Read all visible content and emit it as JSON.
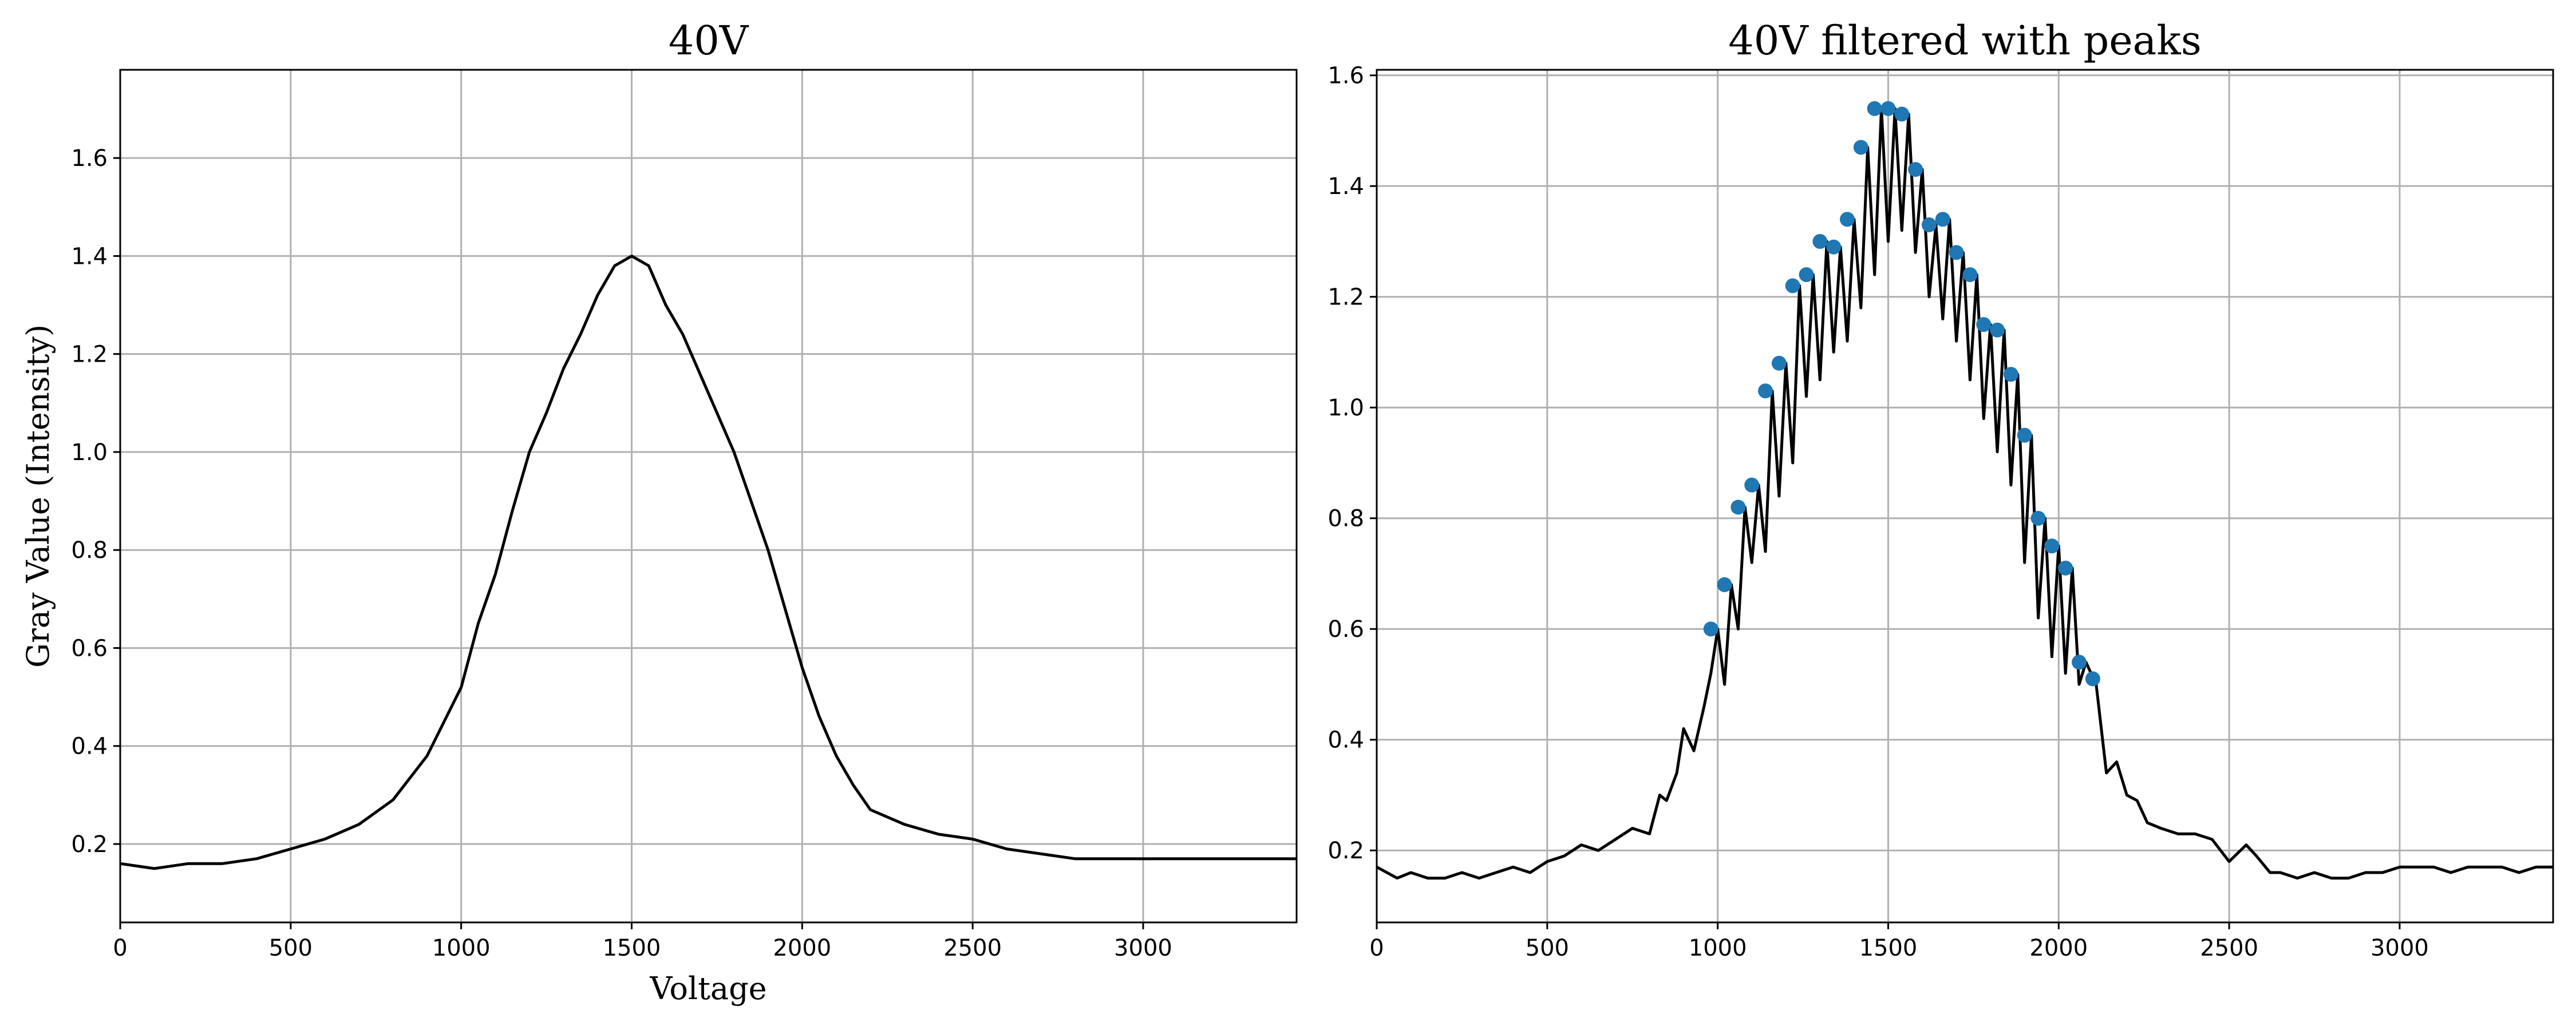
{
  "chart_data": [
    {
      "type": "line",
      "title": "40V",
      "xlabel": "Voltage",
      "ylabel": "Gray Value (Intensity)",
      "xlim": [
        0,
        3450
      ],
      "ylim": [
        0.04,
        1.78
      ],
      "xticks": [
        0,
        500,
        1000,
        1500,
        2000,
        2500,
        3000
      ],
      "yticks": [
        0.2,
        0.4,
        0.6,
        0.8,
        1.0,
        1.2,
        1.4,
        1.6
      ],
      "ytick_labels": [
        "0.2",
        "0.4",
        "0.6",
        "0.8",
        "1.0",
        "1.2",
        "1.4",
        "1.6"
      ],
      "grid": true,
      "series": [
        {
          "color": "#000000",
          "x": [
            0,
            100,
            200,
            300,
            400,
            500,
            600,
            700,
            800,
            900,
            950,
            1000,
            1050,
            1100,
            1150,
            1200,
            1250,
            1300,
            1350,
            1400,
            1450,
            1500,
            1550,
            1600,
            1650,
            1700,
            1750,
            1800,
            1850,
            1900,
            1950,
            2000,
            2050,
            2100,
            2150,
            2200,
            2300,
            2400,
            2500,
            2600,
            2700,
            2800,
            2900,
            3000,
            3100,
            3200,
            3300,
            3400,
            3450
          ],
          "y": [
            0.16,
            0.15,
            0.16,
            0.16,
            0.17,
            0.19,
            0.21,
            0.24,
            0.29,
            0.38,
            0.45,
            0.52,
            0.65,
            0.75,
            0.88,
            1.0,
            1.08,
            1.17,
            1.24,
            1.32,
            1.38,
            1.4,
            1.38,
            1.3,
            1.24,
            1.16,
            1.08,
            1.0,
            0.9,
            0.8,
            0.68,
            0.56,
            0.46,
            0.38,
            0.32,
            0.27,
            0.24,
            0.22,
            0.21,
            0.19,
            0.18,
            0.17,
            0.17,
            0.17,
            0.17,
            0.17,
            0.17,
            0.17,
            0.17
          ]
        }
      ]
    },
    {
      "type": "line",
      "title": "40V filtered with peaks",
      "xlabel": "",
      "ylabel": "",
      "xlim": [
        0,
        3450
      ],
      "ylim": [
        0.07,
        1.61
      ],
      "xticks": [
        0,
        500,
        1000,
        1500,
        2000,
        2500,
        3000
      ],
      "yticks": [
        0.2,
        0.4,
        0.6,
        0.8,
        1.0,
        1.2,
        1.4,
        1.6
      ],
      "ytick_labels": [
        "0.2",
        "0.4",
        "0.6",
        "0.8",
        "1.0",
        "1.2",
        "1.4",
        "1.6"
      ],
      "grid": true,
      "series": [
        {
          "color": "#000000",
          "x": [
            0,
            30,
            60,
            100,
            150,
            200,
            250,
            300,
            350,
            400,
            450,
            500,
            550,
            600,
            650,
            700,
            750,
            800,
            830,
            850,
            880,
            900,
            930,
            960,
            980,
            1000,
            1020,
            1040,
            1060,
            1080,
            1100,
            1120,
            1140,
            1160,
            1180,
            1200,
            1220,
            1240,
            1260,
            1280,
            1300,
            1320,
            1340,
            1360,
            1380,
            1400,
            1420,
            1440,
            1460,
            1480,
            1500,
            1520,
            1540,
            1560,
            1580,
            1600,
            1620,
            1640,
            1660,
            1680,
            1700,
            1720,
            1740,
            1760,
            1780,
            1800,
            1820,
            1840,
            1860,
            1880,
            1900,
            1920,
            1940,
            1960,
            1980,
            2000,
            2020,
            2040,
            2060,
            2080,
            2110,
            2140,
            2170,
            2200,
            2230,
            2260,
            2300,
            2350,
            2400,
            2450,
            2500,
            2550,
            2580,
            2620,
            2650,
            2700,
            2750,
            2800,
            2850,
            2900,
            2950,
            3000,
            3050,
            3100,
            3150,
            3200,
            3250,
            3300,
            3350,
            3400,
            3450
          ],
          "y": [
            0.17,
            0.16,
            0.15,
            0.16,
            0.15,
            0.15,
            0.16,
            0.15,
            0.16,
            0.17,
            0.16,
            0.18,
            0.19,
            0.21,
            0.2,
            0.22,
            0.24,
            0.23,
            0.3,
            0.29,
            0.34,
            0.42,
            0.38,
            0.46,
            0.52,
            0.6,
            0.5,
            0.68,
            0.6,
            0.82,
            0.72,
            0.86,
            0.74,
            1.03,
            0.84,
            1.08,
            0.9,
            1.22,
            1.02,
            1.24,
            1.05,
            1.3,
            1.1,
            1.29,
            1.12,
            1.34,
            1.18,
            1.47,
            1.24,
            1.54,
            1.3,
            1.54,
            1.32,
            1.53,
            1.28,
            1.43,
            1.2,
            1.33,
            1.16,
            1.34,
            1.12,
            1.28,
            1.05,
            1.24,
            0.98,
            1.15,
            0.92,
            1.14,
            0.86,
            1.06,
            0.72,
            0.95,
            0.62,
            0.8,
            0.55,
            0.75,
            0.52,
            0.71,
            0.5,
            0.54,
            0.5,
            0.34,
            0.36,
            0.3,
            0.29,
            0.25,
            0.24,
            0.23,
            0.23,
            0.22,
            0.18,
            0.21,
            0.19,
            0.16,
            0.16,
            0.15,
            0.16,
            0.15,
            0.15,
            0.16,
            0.16,
            0.17,
            0.17,
            0.17,
            0.16,
            0.17,
            0.17,
            0.17,
            0.16,
            0.17,
            0.17
          ]
        },
        {
          "color": "#1f77b4",
          "x": [
            980,
            1020,
            1060,
            1100,
            1140,
            1180,
            1220,
            1260,
            1300,
            1340,
            1380,
            1420,
            1460,
            1500,
            1540,
            1580,
            1620,
            1660,
            1700,
            1740,
            1780,
            1820,
            1860,
            1900,
            1940,
            1980,
            2020,
            2060,
            2100
          ],
          "y": [
            0.6,
            0.68,
            0.82,
            0.86,
            1.03,
            1.08,
            1.22,
            1.24,
            1.3,
            1.29,
            1.34,
            1.47,
            1.54,
            1.54,
            1.53,
            1.43,
            1.33,
            1.34,
            1.28,
            1.24,
            1.15,
            1.14,
            1.06,
            0.95,
            0.8,
            0.75,
            0.71,
            0.54,
            0.51
          ]
        }
      ]
    }
  ]
}
